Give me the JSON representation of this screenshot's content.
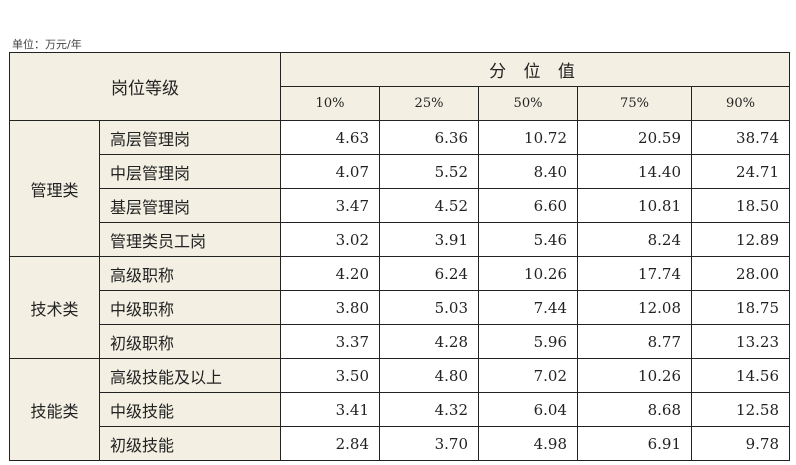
{
  "unit_label": "单位：万元/年",
  "header": {
    "level_label": "岗位等级",
    "percentile_label": "分 位 值",
    "percentiles": [
      "10%",
      "25%",
      "50%",
      "75%",
      "90%"
    ]
  },
  "groups": [
    {
      "category": "管理类",
      "rows": [
        {
          "name": "高层管理岗",
          "values": [
            "4.63",
            "6.36",
            "10.72",
            "20.59",
            "38.74"
          ]
        },
        {
          "name": "中层管理岗",
          "values": [
            "4.07",
            "5.52",
            "8.40",
            "14.40",
            "24.71"
          ]
        },
        {
          "name": "基层管理岗",
          "values": [
            "3.47",
            "4.52",
            "6.60",
            "10.81",
            "18.50"
          ]
        },
        {
          "name": "管理类员工岗",
          "values": [
            "3.02",
            "3.91",
            "5.46",
            "8.24",
            "12.89"
          ]
        }
      ]
    },
    {
      "category": "技术类",
      "rows": [
        {
          "name": "高级职称",
          "values": [
            "4.20",
            "6.24",
            "10.26",
            "17.74",
            "28.00"
          ]
        },
        {
          "name": "中级职称",
          "values": [
            "3.80",
            "5.03",
            "7.44",
            "12.08",
            "18.75"
          ]
        },
        {
          "name": "初级职称",
          "values": [
            "3.37",
            "4.28",
            "5.96",
            "8.77",
            "13.23"
          ]
        }
      ]
    },
    {
      "category": "技能类",
      "rows": [
        {
          "name": "高级技能及以上",
          "values": [
            "3.50",
            "4.80",
            "7.02",
            "10.26",
            "14.56"
          ]
        },
        {
          "name": "中级技能",
          "values": [
            "3.41",
            "4.32",
            "6.04",
            "8.68",
            "12.58"
          ]
        },
        {
          "name": "初级技能",
          "values": [
            "2.84",
            "3.70",
            "4.98",
            "6.91",
            "9.78"
          ]
        }
      ]
    }
  ],
  "colors": {
    "header_bg": "#f3f0e3",
    "border": "#222222"
  }
}
